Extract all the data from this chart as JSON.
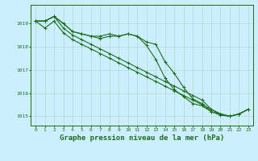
{
  "title": "Graphe pression niveau de la mer (hPa)",
  "background_color": "#cceeff",
  "grid_color": "#b0d9cc",
  "line_color": "#1a6e1a",
  "x_hours": [
    0,
    1,
    2,
    3,
    4,
    5,
    6,
    7,
    8,
    9,
    10,
    11,
    12,
    13,
    14,
    15,
    16,
    17,
    18,
    19,
    20,
    21,
    22,
    23
  ],
  "lines": [
    [
      1019.1,
      1019.1,
      1019.3,
      1019.0,
      1018.65,
      1018.55,
      1018.45,
      1018.45,
      1018.55,
      1018.45,
      1018.55,
      1018.45,
      1018.2,
      1018.1,
      1017.35,
      1016.85,
      1016.25,
      1015.75,
      1015.55,
      1015.2,
      1015.1,
      1015.0,
      1015.1,
      1015.3
    ],
    [
      1019.1,
      1019.1,
      1019.3,
      1019.0,
      1018.65,
      1018.55,
      1018.45,
      1018.35,
      1018.45,
      1018.45,
      1018.55,
      1018.45,
      1018.05,
      1017.45,
      1016.65,
      1016.15,
      1015.85,
      1015.55,
      1015.45,
      1015.2,
      1015.05,
      1015.0,
      1015.1,
      1015.3
    ],
    [
      1019.1,
      1018.8,
      1019.1,
      1018.6,
      1018.3,
      1018.1,
      1017.9,
      1017.7,
      1017.5,
      1017.3,
      1017.1,
      1016.9,
      1016.7,
      1016.5,
      1016.3,
      1016.1,
      1015.9,
      1015.7,
      1015.5,
      1015.3,
      1015.1,
      1015.0,
      1015.1,
      1015.3
    ],
    [
      1019.1,
      1019.1,
      1019.3,
      1018.8,
      1018.5,
      1018.3,
      1018.1,
      1017.9,
      1017.7,
      1017.5,
      1017.3,
      1017.1,
      1016.9,
      1016.7,
      1016.5,
      1016.3,
      1016.1,
      1015.9,
      1015.7,
      1015.3,
      1015.1,
      1015.0,
      1015.1,
      1015.3
    ]
  ],
  "ylim": [
    1014.6,
    1019.8
  ],
  "xlim": [
    -0.5,
    23.5
  ],
  "yticks": [
    1015,
    1016,
    1017,
    1018,
    1019
  ],
  "xticks": [
    0,
    1,
    2,
    3,
    4,
    5,
    6,
    7,
    8,
    9,
    10,
    11,
    12,
    13,
    14,
    15,
    16,
    17,
    18,
    19,
    20,
    21,
    22,
    23
  ],
  "marker": "+",
  "marker_size": 3,
  "line_width": 0.8,
  "title_fontsize": 6.5,
  "tick_fontsize": 4.5
}
